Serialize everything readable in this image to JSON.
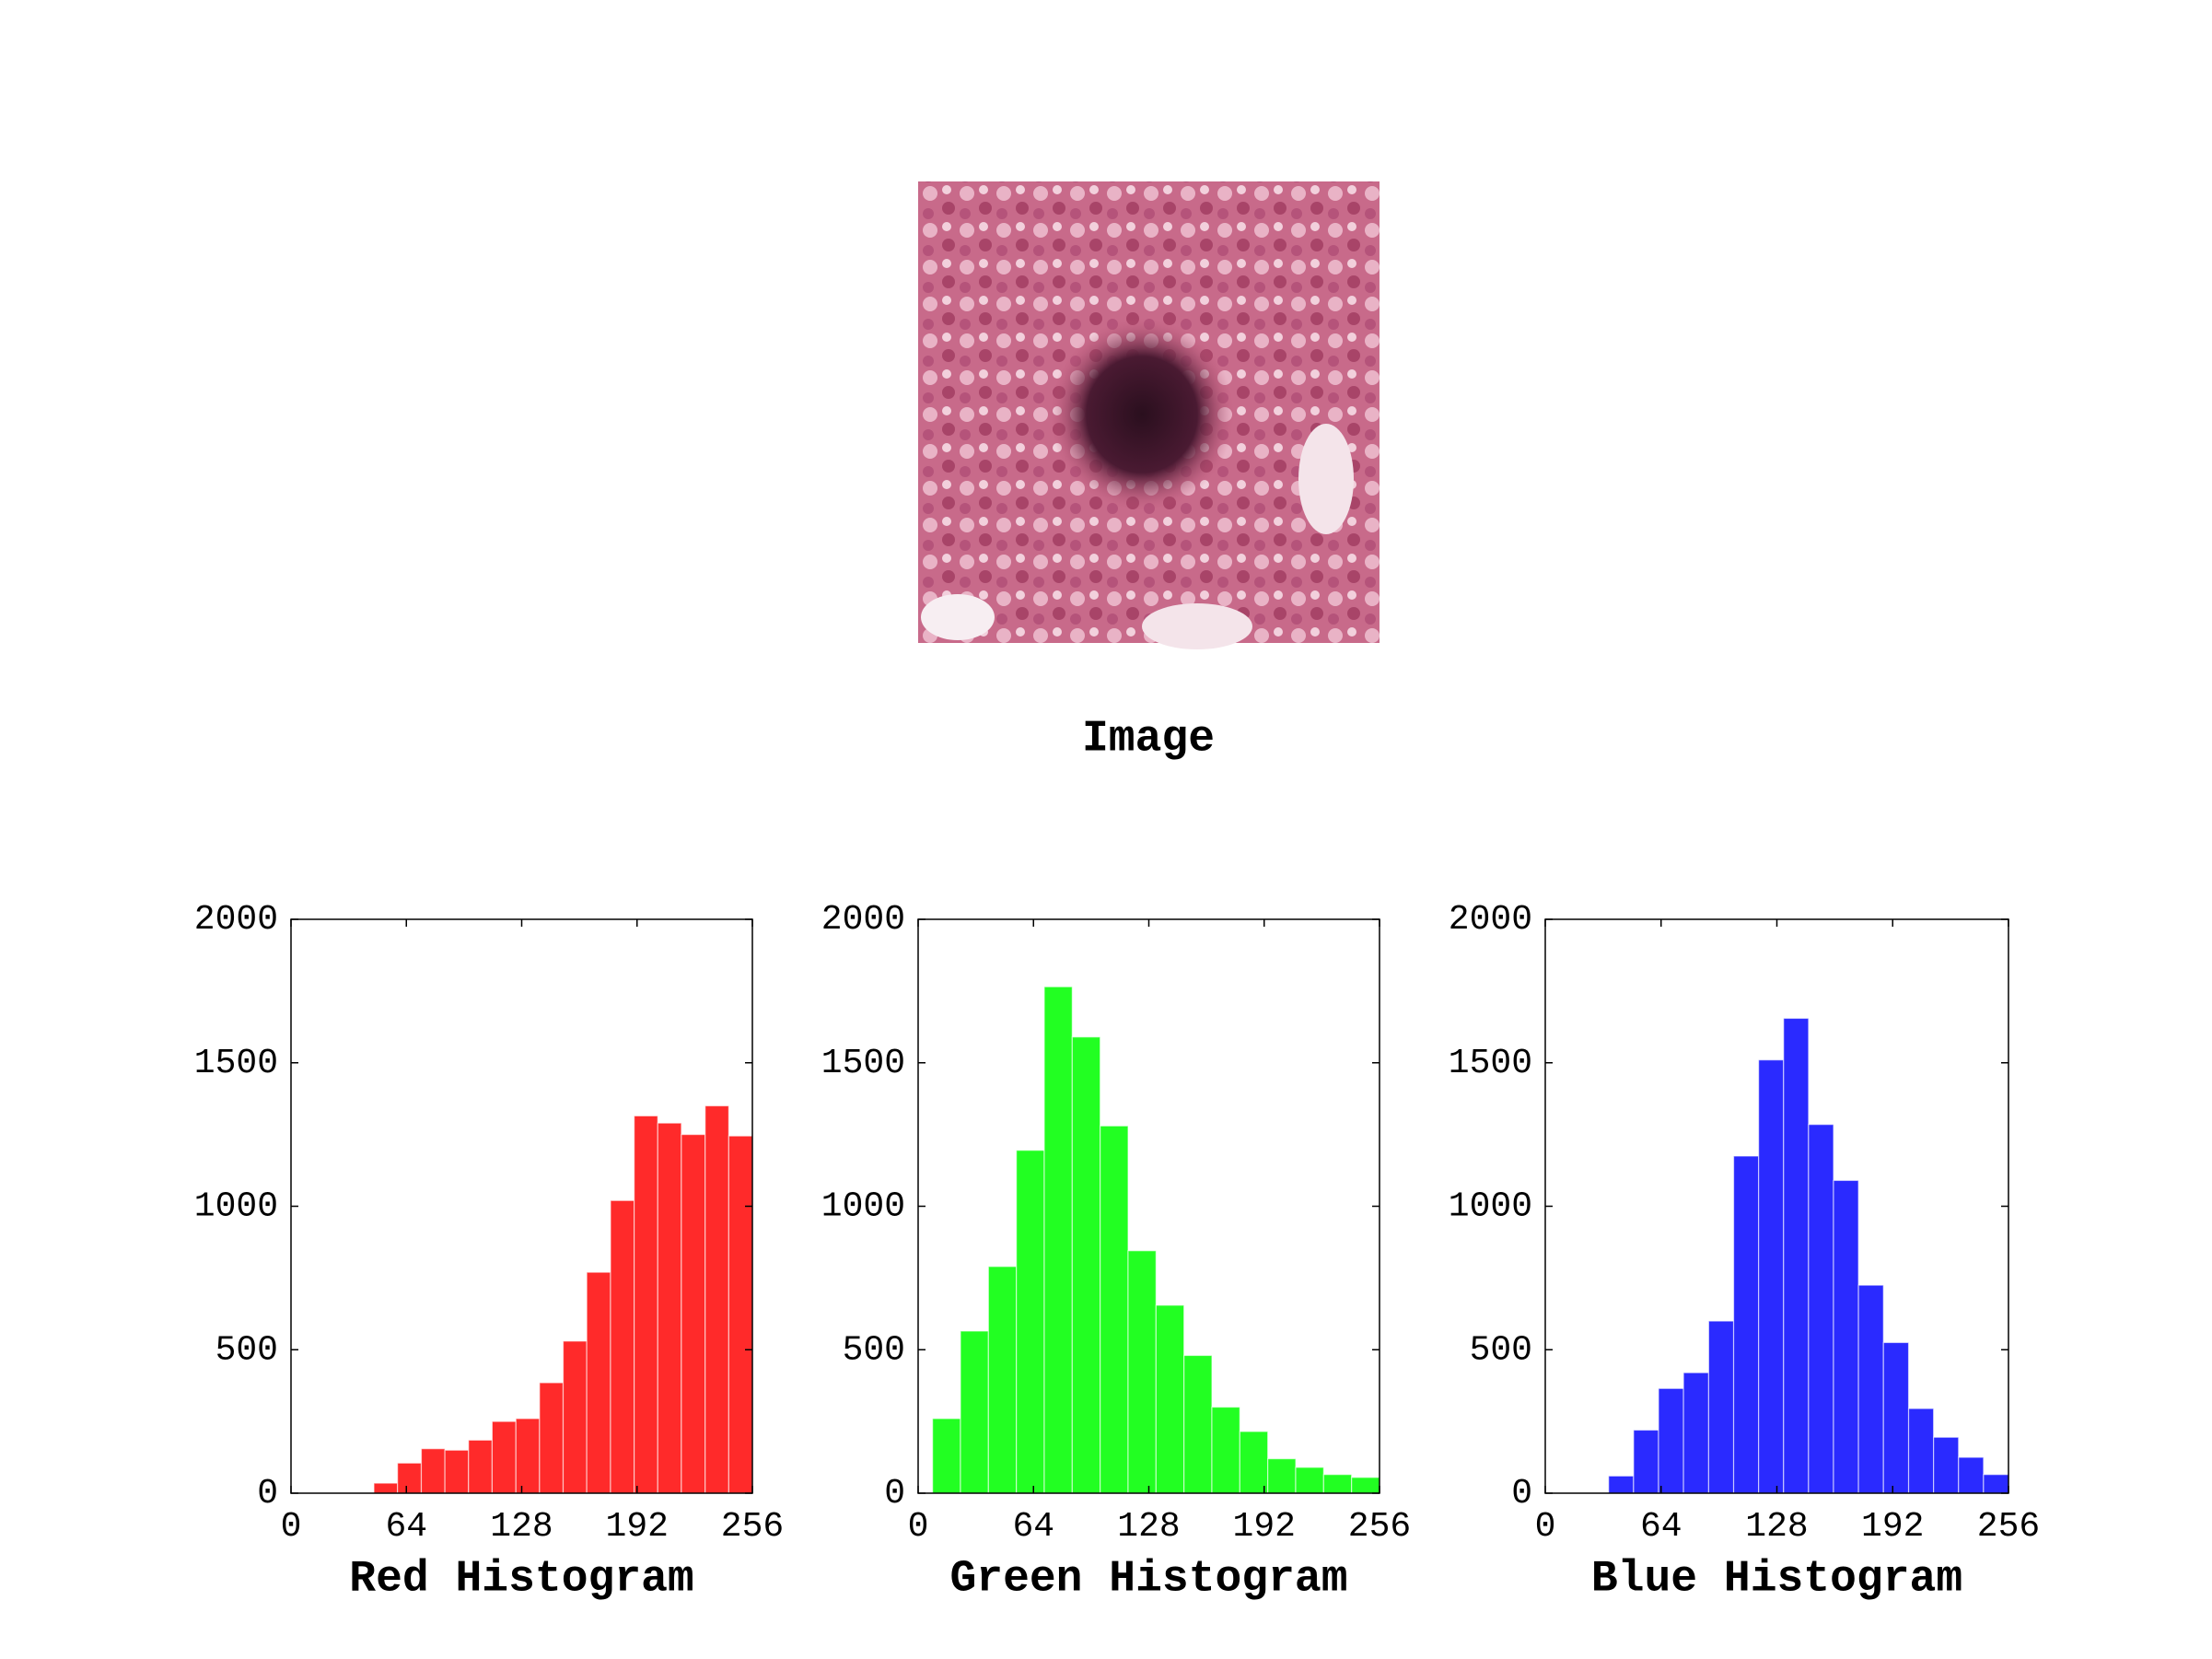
{
  "image": {
    "title": "Image"
  },
  "chart_data": [
    {
      "type": "histogram",
      "title": "Red Histogram",
      "color": "#ff2a2a",
      "bins": [
        46,
        59.1,
        72.3,
        85.4,
        98.5,
        111.6,
        124.8,
        137.9,
        151,
        164.1,
        177.3,
        190.4,
        203.5,
        216.6,
        229.8,
        242.9,
        256
      ],
      "values": [
        35,
        105,
        155,
        150,
        185,
        250,
        260,
        385,
        530,
        770,
        1020,
        1315,
        1290,
        1250,
        1350,
        1245
      ],
      "xlim": [
        0,
        256
      ],
      "ylim": [
        0,
        2000
      ],
      "xticks": [
        0,
        64,
        128,
        192,
        256
      ],
      "yticks": [
        0,
        500,
        1000,
        1500,
        2000
      ],
      "grid": false
    },
    {
      "type": "histogram",
      "title": "Green Histogram",
      "color": "#22ff22",
      "bins": [
        8,
        23.5,
        39,
        54.5,
        70,
        85.5,
        101,
        116.5,
        132,
        147.5,
        163,
        178.5,
        194,
        209.5,
        225,
        240.5,
        256
      ],
      "values": [
        260,
        565,
        790,
        1195,
        1765,
        1590,
        1280,
        845,
        655,
        480,
        300,
        215,
        120,
        90,
        65,
        55
      ],
      "xlim": [
        0,
        256
      ],
      "ylim": [
        0,
        2000
      ],
      "xticks": [
        0,
        64,
        128,
        192,
        256
      ],
      "yticks": [
        0,
        500,
        1000,
        1500,
        2000
      ],
      "grid": false
    },
    {
      "type": "histogram",
      "title": "Blue Histogram",
      "color": "#2a2aff",
      "bins": [
        35,
        48.8,
        62.6,
        76.4,
        90.3,
        104.1,
        117.9,
        131.7,
        145.5,
        159.3,
        173.1,
        186.9,
        200.8,
        214.6,
        228.4,
        242.2,
        256
      ],
      "values": [
        60,
        220,
        365,
        420,
        600,
        1175,
        1510,
        1655,
        1285,
        1090,
        725,
        525,
        295,
        195,
        125,
        65
      ],
      "xlim": [
        0,
        256
      ],
      "ylim": [
        0,
        2000
      ],
      "xticks": [
        0,
        64,
        128,
        192,
        256
      ],
      "yticks": [
        0,
        500,
        1000,
        1500,
        2000
      ],
      "grid": false
    }
  ]
}
